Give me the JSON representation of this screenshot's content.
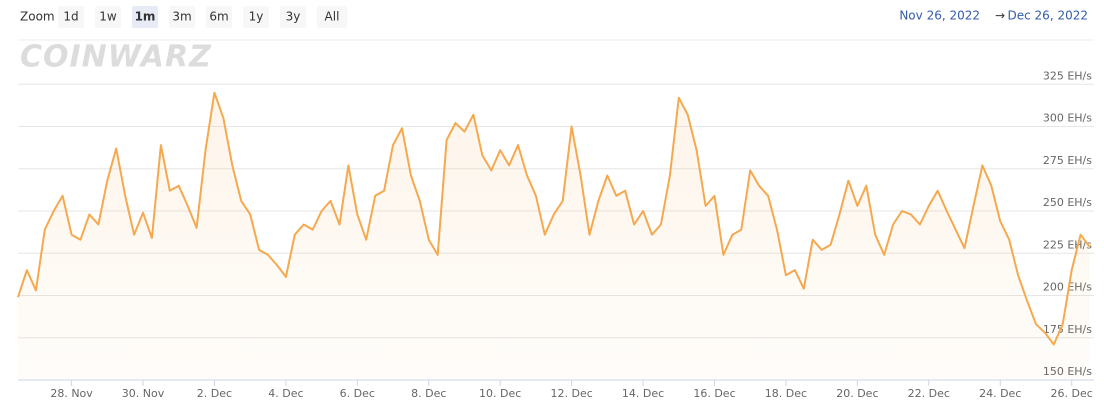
{
  "zoom": {
    "label": "Zoom",
    "buttons": [
      "1d",
      "1w",
      "1m",
      "3m",
      "6m",
      "1y",
      "3y",
      "All"
    ],
    "selected": 2
  },
  "range": {
    "from": "Nov 26, 2022",
    "arrow": "→",
    "to": "Dec 26, 2022"
  },
  "watermark": "COINWARZ",
  "chart_data": {
    "type": "area",
    "color": "#f5a94f",
    "grid": true,
    "xlim": [
      "2022-11-26 12:00",
      "2022-12-26 15:00"
    ],
    "xticks": [
      {
        "value": "2022-11-28",
        "label": "28. Nov"
      },
      {
        "value": "2022-11-30",
        "label": "30. Nov"
      },
      {
        "value": "2022-12-02",
        "label": "2. Dec"
      },
      {
        "value": "2022-12-04",
        "label": "4. Dec"
      },
      {
        "value": "2022-12-06",
        "label": "6. Dec"
      },
      {
        "value": "2022-12-08",
        "label": "8. Dec"
      },
      {
        "value": "2022-12-10",
        "label": "10. Dec"
      },
      {
        "value": "2022-12-12",
        "label": "12. Dec"
      },
      {
        "value": "2022-12-14",
        "label": "14. Dec"
      },
      {
        "value": "2022-12-16",
        "label": "16. Dec"
      },
      {
        "value": "2022-12-18",
        "label": "18. Dec"
      },
      {
        "value": "2022-12-20",
        "label": "20. Dec"
      },
      {
        "value": "2022-12-22",
        "label": "22. Dec"
      },
      {
        "value": "2022-12-24",
        "label": "24. Dec"
      },
      {
        "value": "2022-12-26",
        "label": "26. Dec"
      }
    ],
    "ylim": [
      150,
      350
    ],
    "yticks": [
      {
        "value": 150,
        "label": "150 EH/s"
      },
      {
        "value": 175,
        "label": "175 EH/s"
      },
      {
        "value": 200,
        "label": "200 EH/s"
      },
      {
        "value": 225,
        "label": "225 EH/s"
      },
      {
        "value": 250,
        "label": "250 EH/s"
      },
      {
        "value": 275,
        "label": "275 EH/s"
      },
      {
        "value": 300,
        "label": "300 EH/s"
      },
      {
        "value": 325,
        "label": "325 EH/s"
      }
    ],
    "series": [
      {
        "color": "#f5a94f",
        "x": [
          "2022-11-26 12:00",
          "2022-11-26 18:00",
          "2022-11-27 00:00",
          "2022-11-27 06:00",
          "2022-11-27 12:00",
          "2022-11-27 18:00",
          "2022-11-28 00:00",
          "2022-11-28 06:00",
          "2022-11-28 12:00",
          "2022-11-28 18:00",
          "2022-11-29 00:00",
          "2022-11-29 06:00",
          "2022-11-29 12:00",
          "2022-11-29 18:00",
          "2022-11-30 00:00",
          "2022-11-30 06:00",
          "2022-11-30 12:00",
          "2022-11-30 18:00",
          "2022-12-01 00:00",
          "2022-12-01 06:00",
          "2022-12-01 12:00",
          "2022-12-01 18:00",
          "2022-12-02 00:00",
          "2022-12-02 06:00",
          "2022-12-02 12:00",
          "2022-12-02 18:00",
          "2022-12-03 00:00",
          "2022-12-03 06:00",
          "2022-12-03 12:00",
          "2022-12-03 18:00",
          "2022-12-04 00:00",
          "2022-12-04 06:00",
          "2022-12-04 12:00",
          "2022-12-04 18:00",
          "2022-12-05 00:00",
          "2022-12-05 06:00",
          "2022-12-05 12:00",
          "2022-12-05 18:00",
          "2022-12-06 00:00",
          "2022-12-06 06:00",
          "2022-12-06 12:00",
          "2022-12-06 18:00",
          "2022-12-07 00:00",
          "2022-12-07 06:00",
          "2022-12-07 12:00",
          "2022-12-07 18:00",
          "2022-12-08 00:00",
          "2022-12-08 06:00",
          "2022-12-08 12:00",
          "2022-12-08 18:00",
          "2022-12-09 00:00",
          "2022-12-09 06:00",
          "2022-12-09 12:00",
          "2022-12-09 18:00",
          "2022-12-10 00:00",
          "2022-12-10 06:00",
          "2022-12-10 12:00",
          "2022-12-10 18:00",
          "2022-12-11 00:00",
          "2022-12-11 06:00",
          "2022-12-11 12:00",
          "2022-12-11 18:00",
          "2022-12-12 00:00",
          "2022-12-12 06:00",
          "2022-12-12 12:00",
          "2022-12-12 18:00",
          "2022-12-13 00:00",
          "2022-12-13 06:00",
          "2022-12-13 12:00",
          "2022-12-13 18:00",
          "2022-12-14 00:00",
          "2022-12-14 06:00",
          "2022-12-14 12:00",
          "2022-12-14 18:00",
          "2022-12-15 00:00",
          "2022-12-15 06:00",
          "2022-12-15 12:00",
          "2022-12-15 18:00",
          "2022-12-16 00:00",
          "2022-12-16 06:00",
          "2022-12-16 12:00",
          "2022-12-16 18:00",
          "2022-12-17 00:00",
          "2022-12-17 06:00",
          "2022-12-17 12:00",
          "2022-12-17 18:00",
          "2022-12-18 00:00",
          "2022-12-18 06:00",
          "2022-12-18 12:00",
          "2022-12-18 18:00",
          "2022-12-19 00:00",
          "2022-12-19 06:00",
          "2022-12-19 12:00",
          "2022-12-19 18:00",
          "2022-12-20 00:00",
          "2022-12-20 06:00",
          "2022-12-20 12:00",
          "2022-12-20 18:00",
          "2022-12-21 00:00",
          "2022-12-21 06:00",
          "2022-12-21 12:00",
          "2022-12-21 18:00",
          "2022-12-22 00:00",
          "2022-12-22 06:00",
          "2022-12-22 12:00",
          "2022-12-22 18:00",
          "2022-12-23 00:00",
          "2022-12-23 06:00",
          "2022-12-23 12:00",
          "2022-12-23 18:00",
          "2022-12-24 00:00",
          "2022-12-24 06:00",
          "2022-12-24 12:00",
          "2022-12-24 18:00",
          "2022-12-25 00:00",
          "2022-12-25 06:00",
          "2022-12-25 12:00",
          "2022-12-25 18:00",
          "2022-12-26 00:00",
          "2022-12-26 06:00",
          "2022-12-26 12:00"
        ],
        "values": [
          199,
          215,
          203,
          239,
          250,
          259,
          236,
          233,
          248,
          242,
          268,
          287,
          259,
          236,
          249,
          234,
          289,
          262,
          265,
          253,
          240,
          286,
          320,
          305,
          277,
          256,
          248,
          227,
          224,
          218,
          211,
          236,
          242,
          239,
          250,
          256,
          242,
          277,
          248,
          233,
          259,
          262,
          289,
          299,
          271,
          256,
          233,
          224,
          292,
          302,
          297,
          307,
          283,
          274,
          286,
          277,
          289,
          271,
          259,
          236,
          248,
          256,
          300,
          271,
          236,
          256,
          271,
          259,
          262,
          242,
          250,
          236,
          242,
          271,
          317,
          307,
          286,
          253,
          259,
          224,
          236,
          239,
          274,
          265,
          259,
          239,
          212,
          215,
          204,
          233,
          227,
          230,
          248,
          268,
          253,
          265,
          236,
          224,
          242,
          250,
          248,
          242,
          253,
          262,
          250,
          239,
          228,
          253,
          277,
          265,
          244,
          233,
          212,
          197,
          183,
          178,
          171,
          183,
          215,
          236,
          229
        ]
      }
    ]
  }
}
